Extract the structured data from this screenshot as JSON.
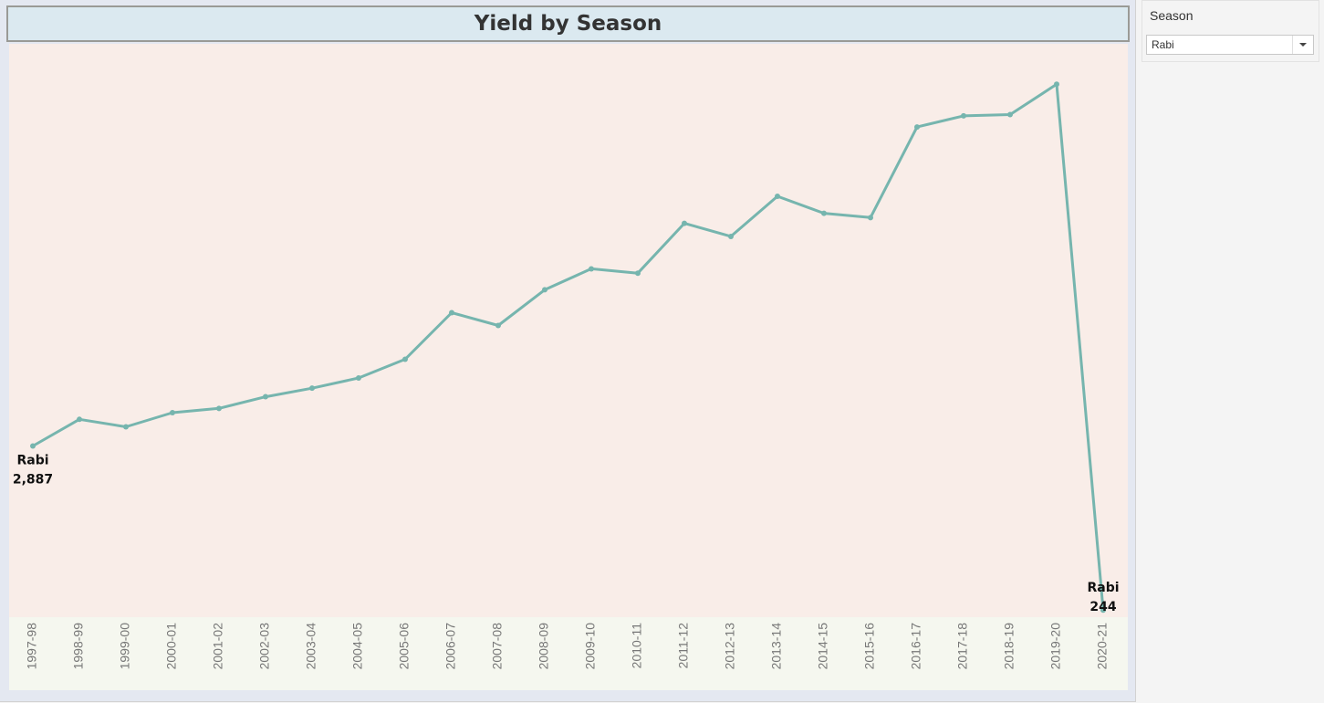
{
  "title": "Yield by Season",
  "filter": {
    "label": "Season",
    "selected": "Rabi",
    "icon": "chevron-down-icon"
  },
  "colors": {
    "line": "#76b5ae",
    "plot_bg": "#f9ede8",
    "axis_bg": "#f5f7ef",
    "title_bg": "#dbe9f0"
  },
  "chart_data": {
    "type": "line",
    "title": "Yield by Season",
    "xlabel": "",
    "ylabel": "",
    "categories": [
      "1997-98",
      "1998-99",
      "1999-00",
      "2000-01",
      "2001-02",
      "2002-03",
      "2003-04",
      "2004-05",
      "2005-06",
      "2006-07",
      "2007-08",
      "2008-09",
      "2009-10",
      "2010-11",
      "2011-12",
      "2012-13",
      "2013-14",
      "2014-15",
      "2015-16",
      "2016-17",
      "2017-18",
      "2018-19",
      "2019-20",
      "2020-21"
    ],
    "series": [
      {
        "name": "Rabi",
        "values": [
          2887,
          3316,
          3196,
          3424,
          3492,
          3680,
          3818,
          3982,
          4283,
          5033,
          4828,
          5402,
          5740,
          5670,
          6473,
          6262,
          6908,
          6635,
          6565,
          8024,
          8203,
          8224,
          8712,
          244
        ]
      }
    ],
    "ylim": [
      130,
      9040
    ],
    "grid": false,
    "legend": "none",
    "point_labels": [
      {
        "index": 0,
        "series": "Rabi",
        "value": "2,887"
      },
      {
        "index": 23,
        "series": "Rabi",
        "value": "244"
      }
    ]
  }
}
